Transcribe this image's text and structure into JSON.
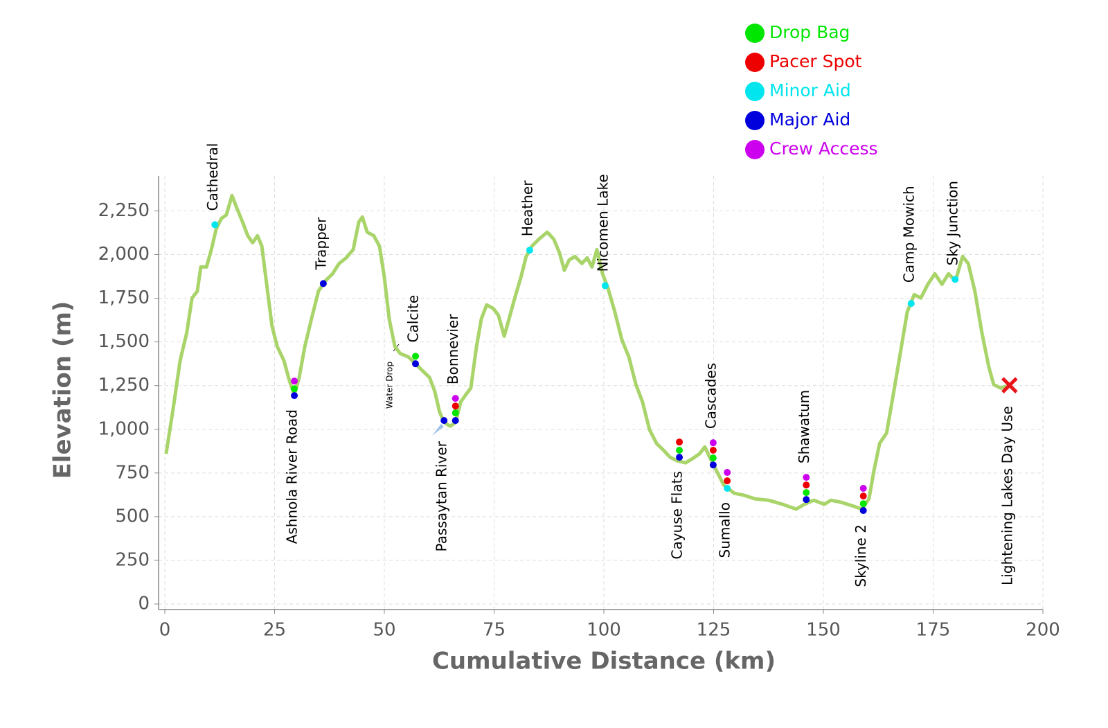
{
  "chart_data": {
    "type": "line",
    "x_label": "Cumulative Distance (km)",
    "y_label": "Elevation (m)",
    "xlim": [
      0,
      200
    ],
    "ylim": [
      0,
      2450
    ],
    "xticks": [
      0,
      25,
      50,
      75,
      100,
      125,
      150,
      175,
      200
    ],
    "yticks": [
      0,
      250,
      500,
      750,
      {
        "value": 1000,
        "label": "1,000"
      },
      {
        "value": 1250,
        "label": "1,250"
      },
      {
        "value": 1500,
        "label": "1,500"
      },
      {
        "value": 1750,
        "label": "1,750"
      },
      {
        "value": 2000,
        "label": "2,000"
      },
      {
        "value": 2250,
        "label": "2,250"
      }
    ],
    "grid": true,
    "color": "#a9d46a",
    "x": [
      0.3,
      1.9,
      3.5,
      5,
      6.2,
      7.4,
      8.2,
      9.5,
      10.6,
      11.7,
      12.9,
      14,
      15.3,
      16.4,
      17.7,
      18.9,
      20,
      21.1,
      22.1,
      23.2,
      24.4,
      25.6,
      27.1,
      28.4,
      29.5,
      30.6,
      31.9,
      33.4,
      35,
      36.6,
      38.2,
      39.7,
      41.3,
      42.9,
      44.2,
      45,
      46.1,
      47.6,
      48.9,
      50,
      51.1,
      52.4,
      53.6,
      55.5,
      57.1,
      58.7,
      60.3,
      61.5,
      62.6,
      63.7,
      65,
      66.2,
      67.4,
      68.5,
      69.7,
      71,
      72.1,
      73.3,
      74.8,
      76,
      77.3,
      78.4,
      79.7,
      81.1,
      82.3,
      83.6,
      85.2,
      87.1,
      88.6,
      89.9,
      91,
      92.1,
      93.4,
      95,
      96.2,
      97.3,
      98.4,
      99.7,
      100.9,
      102.5,
      104.1,
      105.7,
      107.3,
      108.8,
      110.4,
      112,
      113.6,
      115.1,
      116.7,
      118.6,
      120.2,
      121.8,
      123,
      124.1,
      125.7,
      127.3,
      129.7,
      132,
      134.4,
      137.5,
      140.7,
      143.8,
      145.7,
      147.8,
      150.2,
      151.7,
      154.1,
      156.5,
      158.8,
      160.4,
      161.5,
      162.8,
      164.4,
      165.9,
      167.5,
      169.1,
      170.7,
      172.2,
      173.8,
      175.4,
      177,
      178.5,
      180.1,
      181.7,
      183,
      184.5,
      186.1,
      187.7,
      188.8,
      190.4,
      192
    ],
    "values": [
      860,
      1117,
      1395,
      1553,
      1751,
      1790,
      1929,
      1929,
      2028,
      2147,
      2207,
      2227,
      2338,
      2266,
      2187,
      2108,
      2068,
      2108,
      2048,
      1830,
      1593,
      1474,
      1395,
      1276,
      1196,
      1296,
      1474,
      1632,
      1791,
      1850,
      1890,
      1949,
      1981,
      2028,
      2187,
      2215,
      2128,
      2108,
      2048,
      1870,
      1632,
      1474,
      1434,
      1414,
      1375,
      1335,
      1296,
      1216,
      1097,
      1038,
      1018,
      1038,
      1157,
      1196,
      1236,
      1474,
      1632,
      1712,
      1692,
      1652,
      1533,
      1632,
      1751,
      1870,
      1989,
      2048,
      2088,
      2128,
      2088,
      2009,
      1910,
      1969,
      1989,
      1949,
      1981,
      1929,
      2028,
      1890,
      1811,
      1672,
      1513,
      1414,
      1256,
      1157,
      998,
      919,
      880,
      840,
      820,
      808,
      832,
      860,
      899,
      840,
      761,
      681,
      634,
      622,
      602,
      594,
      571,
      543,
      571,
      594,
      571,
      594,
      582,
      563,
      543,
      602,
      761,
      919,
      979,
      1196,
      1434,
      1672,
      1771,
      1751,
      1830,
      1890,
      1830,
      1890,
      1850,
      1989,
      1949,
      1791,
      1553,
      1355,
      1256,
      1236,
      1248
    ],
    "marker_series": [
      {
        "name": "Drop Bag",
        "color": "#00e600",
        "x": [
          29.5,
          57.1,
          66.2,
          117.2,
          124.9,
          146.1,
          159.1
        ],
        "values": [
          1232,
          1418,
          1094,
          880,
          836,
          638,
          574
        ]
      },
      {
        "name": "Pacer Spot",
        "color": "#ee0000",
        "x": [
          66.2,
          117.2,
          124.9,
          128.1,
          146.1,
          159.1
        ],
        "values": [
          1133,
          927,
          880,
          705,
          681,
          618
        ]
      },
      {
        "name": "Minor Aid",
        "color": "#00e5ee",
        "x": [
          11.4,
          83.1,
          100.3,
          128.1,
          170,
          180
        ],
        "values": [
          2171,
          2025,
          1822,
          662,
          1720,
          1858
        ]
      },
      {
        "name": "Major Aid",
        "color": "#0000dd",
        "x": [
          29.5,
          36.1,
          57.1,
          63.6,
          66.2,
          117.2,
          124.9,
          146.1,
          159.1
        ],
        "values": [
          1193,
          1834,
          1375,
          1050,
          1050,
          840,
          796,
          598,
          535
        ]
      },
      {
        "name": "Crew Access",
        "color": "#cc00ee",
        "x": [
          29.5,
          66.2,
          124.9,
          128.1,
          146.1,
          159.1
        ],
        "values": [
          1276,
          1177,
          923,
          753,
          725,
          662
        ]
      }
    ],
    "finish": {
      "x": 192.4,
      "value": 1252,
      "color": "#e8141a"
    },
    "stations": [
      {
        "name": "Cathedral",
        "x": 11.4
      },
      {
        "name": "Ashnola River Road",
        "x": 29.5
      },
      {
        "name": "Trapper",
        "x": 36.1
      },
      {
        "name": "Calcite",
        "x": 57.1
      },
      {
        "name": "Passaytan River",
        "x": 63.6
      },
      {
        "name": "Bonnevier",
        "x": 66.2
      },
      {
        "name": "Heather",
        "x": 83.1
      },
      {
        "name": "Nicomen Lake",
        "x": 100.3
      },
      {
        "name": "Cayuse Flats",
        "x": 117.2
      },
      {
        "name": "Cascades",
        "x": 124.9
      },
      {
        "name": "Sumallo",
        "x": 128.1
      },
      {
        "name": "Shawatum",
        "x": 146.1
      },
      {
        "name": "Skyline 2",
        "x": 159.1
      },
      {
        "name": "Camp Mowich",
        "x": 170
      },
      {
        "name": "Sky Junction",
        "x": 180
      },
      {
        "name": "Lightening Lakes Day Use",
        "x": 192.4
      }
    ],
    "annotations": [
      "Water Drop"
    ]
  }
}
